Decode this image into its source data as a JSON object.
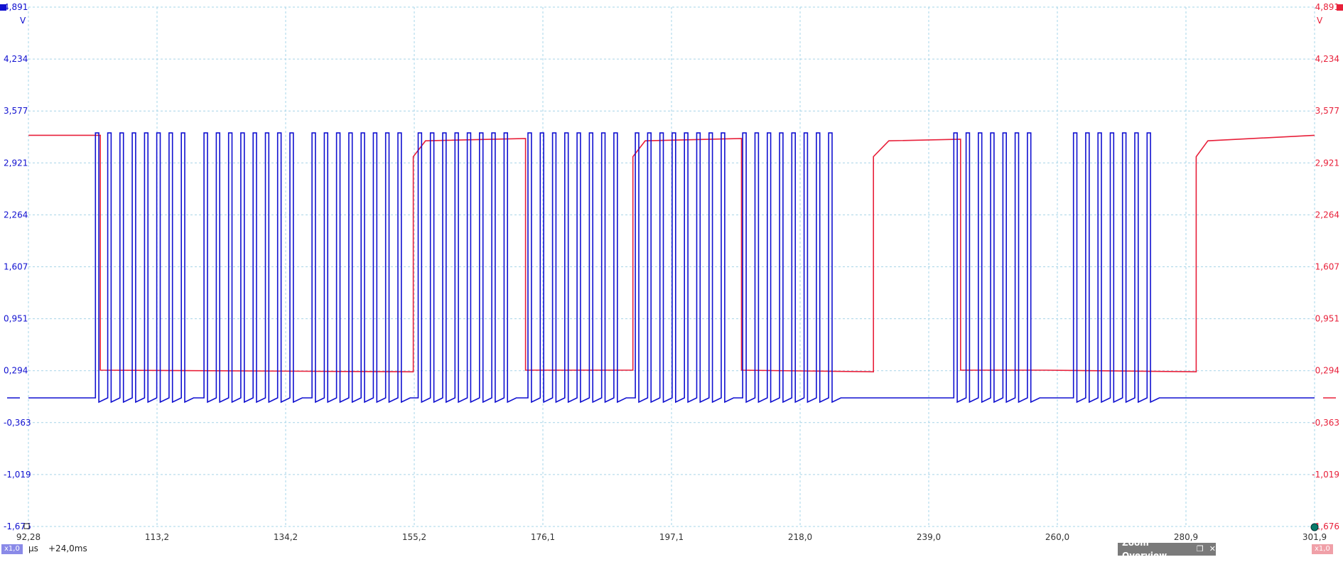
{
  "colors": {
    "channel_a": "#1010d0",
    "channel_b": "#e8203a",
    "grid": "#a6d4e8"
  },
  "chart_data": {
    "type": "line",
    "title": "",
    "xlabel": "µs",
    "x_ticks": [
      "92,28",
      "113,2",
      "134,2",
      "155,2",
      "176,1",
      "197,1",
      "218,0",
      "239,0",
      "260,0",
      "280,9",
      "301,9"
    ],
    "xlim": [
      92.28,
      301.9
    ],
    "y_ticks": [
      "4,891",
      "4,234",
      "3,577",
      "2,921",
      "2,264",
      "1,607",
      "0,951",
      "0,294",
      "-0,363",
      "-1,019",
      "-1,676"
    ],
    "ylim": [
      -1.676,
      4.891
    ],
    "y_unit": "V",
    "grid": true,
    "series": [
      {
        "color": "#1010d0",
        "low": -0.05,
        "high": 3.3,
        "period_us": 2.0,
        "bursts_us": [
          [
            103.2,
            120.9
          ],
          [
            120.9,
            138.5
          ],
          [
            138.5,
            155.7
          ],
          [
            155.8,
            173.7
          ],
          [
            173.7,
            191.2
          ],
          [
            191.2,
            208.7
          ],
          [
            208.7,
            226.2
          ],
          [
            243.1,
            258.0
          ],
          [
            262.6,
            277.6
          ]
        ]
      },
      {
        "color": "#e8203a",
        "low": 0.28,
        "high": 3.27,
        "levels": [
          {
            "x": 92.3,
            "y": 3.27
          },
          {
            "x": 104.0,
            "y": 3.27
          },
          {
            "x": 104.0,
            "y": 0.3
          },
          {
            "x": 155.0,
            "y": 0.28
          },
          {
            "x": 155.0,
            "y": 3.0
          },
          {
            "x": 157.0,
            "y": 3.2
          },
          {
            "x": 173.3,
            "y": 3.23
          },
          {
            "x": 173.3,
            "y": 0.3
          },
          {
            "x": 190.8,
            "y": 0.3
          },
          {
            "x": 190.8,
            "y": 3.0
          },
          {
            "x": 192.8,
            "y": 3.2
          },
          {
            "x": 208.5,
            "y": 3.23
          },
          {
            "x": 208.5,
            "y": 0.3
          },
          {
            "x": 230.0,
            "y": 0.28
          },
          {
            "x": 230.0,
            "y": 3.0
          },
          {
            "x": 232.5,
            "y": 3.2
          },
          {
            "x": 244.2,
            "y": 3.22
          },
          {
            "x": 244.2,
            "y": 0.3
          },
          {
            "x": 258.0,
            "y": 0.3
          },
          {
            "x": 258.0,
            "y": 0.3
          },
          {
            "x": 282.6,
            "y": 0.28
          },
          {
            "x": 282.6,
            "y": 3.0
          },
          {
            "x": 284.5,
            "y": 3.2
          },
          {
            "x": 301.9,
            "y": 3.27
          }
        ]
      }
    ]
  },
  "footer": {
    "channel_a_badge": "x1,0",
    "channel_b_badge": "x1,0",
    "unit": "µs",
    "offset": "+24,0ms",
    "zoom_overview": "Zoom Overview",
    "restore_icon": "restore-icon",
    "close_icon": "close-icon"
  }
}
